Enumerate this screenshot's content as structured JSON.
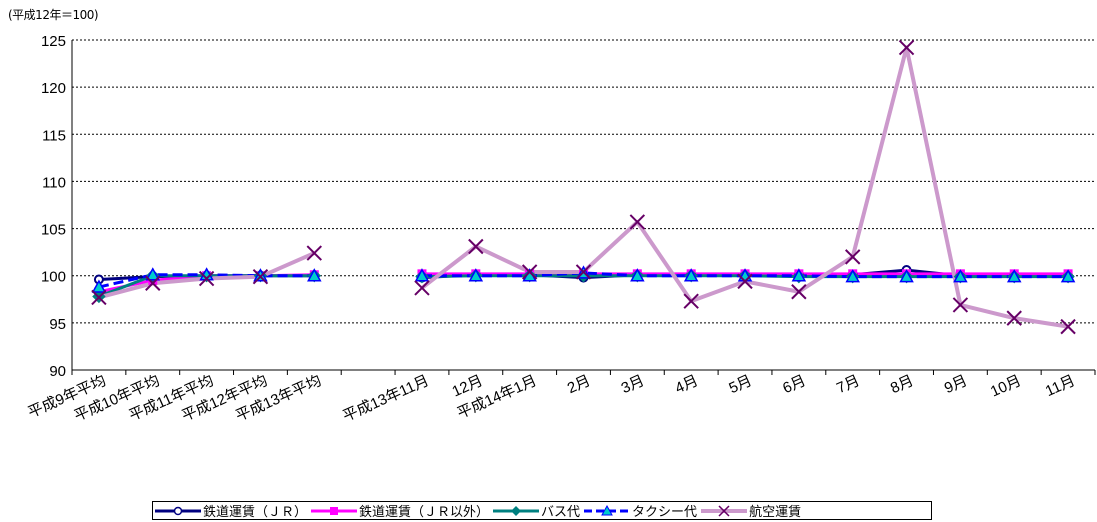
{
  "chart_data": {
    "type": "line",
    "unit_label": "(平成12年＝100)",
    "ylim": [
      90,
      125
    ],
    "yticks": [
      "90",
      "95",
      "100",
      "105",
      "110",
      "115",
      "120",
      "125"
    ],
    "grid": true,
    "legend_position": "bottom",
    "categories": [
      "平成9年平均",
      "平成10年平均",
      "平成11年平均",
      "平成12年平均",
      "平成13年平均",
      "",
      "平成13年11月",
      "12月",
      "平成14年1月",
      "2月",
      "3月",
      "4月",
      "5月",
      "6月",
      "7月",
      "8月",
      "9月",
      "10月",
      "11月"
    ],
    "series": [
      {
        "name": "鉄道運賃（ＪＲ）",
        "color": "#000080",
        "marker": "circle",
        "values": [
          99.6,
          99.9,
          100.0,
          100.0,
          100.0,
          null,
          99.8,
          100.1,
          100.1,
          99.8,
          100.1,
          100.1,
          100.1,
          100.1,
          100.1,
          100.6,
          100.0,
          100.0,
          100.0
        ]
      },
      {
        "name": "鉄道運賃（ＪＲ以外）",
        "color": "#ff00ff",
        "marker": "square",
        "values": [
          98.3,
          99.5,
          100.0,
          100.0,
          100.1,
          null,
          100.2,
          100.2,
          100.2,
          100.2,
          100.2,
          100.2,
          100.2,
          100.2,
          100.2,
          100.2,
          100.2,
          100.2,
          100.2
        ]
      },
      {
        "name": "バス代",
        "color": "#008080",
        "marker": "diamond",
        "values": [
          97.8,
          100.0,
          100.0,
          100.0,
          100.0,
          null,
          99.9,
          100.0,
          100.0,
          100.0,
          100.0,
          100.0,
          100.0,
          99.9,
          99.9,
          99.9,
          99.9,
          99.9,
          99.9
        ]
      },
      {
        "name": "タクシー代",
        "color": "#0000ff",
        "marker": "triangle",
        "dashed": true,
        "values": [
          98.8,
          100.1,
          100.1,
          100.0,
          100.0,
          null,
          100.0,
          100.0,
          100.0,
          100.3,
          100.0,
          100.0,
          100.0,
          100.0,
          99.9,
          99.9,
          99.9,
          99.9,
          99.9
        ]
      },
      {
        "name": "航空運賃",
        "color": "#cc99cc",
        "marker": "x",
        "markerColor": "#660066",
        "values": [
          97.7,
          99.2,
          99.7,
          99.9,
          102.4,
          null,
          98.7,
          103.1,
          100.4,
          100.4,
          105.7,
          97.3,
          99.4,
          98.3,
          102.0,
          124.2,
          96.9,
          95.5,
          94.6
        ]
      }
    ]
  }
}
